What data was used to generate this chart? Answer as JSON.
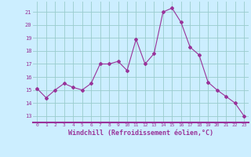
{
  "x": [
    0,
    1,
    2,
    3,
    4,
    5,
    6,
    7,
    8,
    9,
    10,
    11,
    12,
    13,
    14,
    15,
    16,
    17,
    18,
    19,
    20,
    21,
    22,
    23
  ],
  "y": [
    15.1,
    14.4,
    15.0,
    15.5,
    15.2,
    15.0,
    15.5,
    17.0,
    17.0,
    17.2,
    16.5,
    18.9,
    17.0,
    17.8,
    21.0,
    21.3,
    20.2,
    18.3,
    17.7,
    15.6,
    15.0,
    14.5,
    14.0,
    13.0
  ],
  "line_color": "#993399",
  "marker": "D",
  "marker_size": 2.0,
  "bg_color": "#cceeff",
  "grid_color": "#99cccc",
  "xlabel": "Windchill (Refroidissement éolien,°C)",
  "xlabel_color": "#993399",
  "tick_color": "#993399",
  "spine_color": "#993399",
  "ylim": [
    12.5,
    21.8
  ],
  "xlim": [
    -0.5,
    23.5
  ],
  "yticks": [
    13,
    14,
    15,
    16,
    17,
    18,
    19,
    20,
    21
  ],
  "xticks": [
    0,
    1,
    2,
    3,
    4,
    5,
    6,
    7,
    8,
    9,
    10,
    11,
    12,
    13,
    14,
    15,
    16,
    17,
    18,
    19,
    20,
    21,
    22,
    23
  ]
}
